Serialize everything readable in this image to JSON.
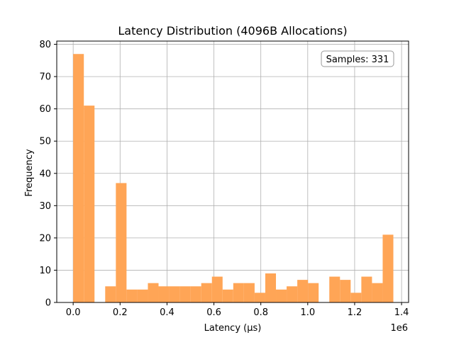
{
  "chart_data": {
    "type": "bar",
    "title": "Latency Distribution (4096B Allocations)",
    "xlabel": "Latency (µs)",
    "ylabel": "Frequency",
    "x_offset_label": "1e6",
    "annotation": "Samples: 331",
    "xlim": [
      -70000,
      1430000
    ],
    "ylim": [
      0,
      81
    ],
    "x_ticks": [
      0,
      200000,
      400000,
      600000,
      800000,
      1000000,
      1200000,
      1400000
    ],
    "x_tick_labels": [
      "0.0",
      "0.2",
      "0.4",
      "0.6",
      "0.8",
      "1.0",
      "1.2",
      "1.4"
    ],
    "y_ticks": [
      0,
      10,
      20,
      30,
      40,
      50,
      60,
      70,
      80
    ],
    "y_tick_labels": [
      "0",
      "10",
      "20",
      "30",
      "40",
      "50",
      "60",
      "70",
      "80"
    ],
    "grid": true,
    "bar_color": "#ffa556",
    "bins": [
      {
        "x0": 0,
        "x1": 45500,
        "value": 77
      },
      {
        "x0": 45500,
        "x1": 91000,
        "value": 61
      },
      {
        "x0": 91000,
        "x1": 136500,
        "value": 0
      },
      {
        "x0": 136500,
        "x1": 182000,
        "value": 5
      },
      {
        "x0": 182000,
        "x1": 227500,
        "value": 37
      },
      {
        "x0": 227500,
        "x1": 273000,
        "value": 4
      },
      {
        "x0": 273000,
        "x1": 318500,
        "value": 4
      },
      {
        "x0": 318500,
        "x1": 364000,
        "value": 6
      },
      {
        "x0": 364000,
        "x1": 409500,
        "value": 5
      },
      {
        "x0": 409500,
        "x1": 455000,
        "value": 5
      },
      {
        "x0": 455000,
        "x1": 500500,
        "value": 5
      },
      {
        "x0": 500500,
        "x1": 546000,
        "value": 5
      },
      {
        "x0": 546000,
        "x1": 591500,
        "value": 6
      },
      {
        "x0": 591500,
        "x1": 637000,
        "value": 8
      },
      {
        "x0": 637000,
        "x1": 682500,
        "value": 4
      },
      {
        "x0": 682500,
        "x1": 728000,
        "value": 6
      },
      {
        "x0": 728000,
        "x1": 773500,
        "value": 6
      },
      {
        "x0": 773500,
        "x1": 819000,
        "value": 3
      },
      {
        "x0": 819000,
        "x1": 864500,
        "value": 9
      },
      {
        "x0": 864500,
        "x1": 910000,
        "value": 4
      },
      {
        "x0": 910000,
        "x1": 955500,
        "value": 5
      },
      {
        "x0": 955500,
        "x1": 1001000,
        "value": 7
      },
      {
        "x0": 1001000,
        "x1": 1046500,
        "value": 6
      },
      {
        "x0": 1046500,
        "x1": 1092000,
        "value": 0
      },
      {
        "x0": 1092000,
        "x1": 1137500,
        "value": 8
      },
      {
        "x0": 1137500,
        "x1": 1183000,
        "value": 7
      },
      {
        "x0": 1183000,
        "x1": 1228500,
        "value": 3
      },
      {
        "x0": 1228500,
        "x1": 1274000,
        "value": 8
      },
      {
        "x0": 1274000,
        "x1": 1319500,
        "value": 6
      },
      {
        "x0": 1319500,
        "x1": 1365000,
        "value": 21
      }
    ]
  }
}
